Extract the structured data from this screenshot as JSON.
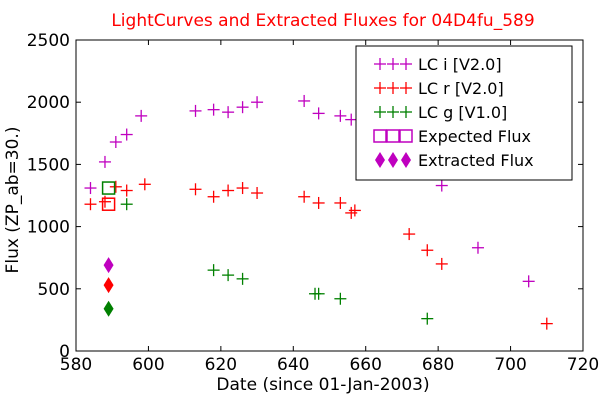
{
  "chart_data": {
    "type": "scatter",
    "title": "LightCurves and Extracted Fluxes for 04D4fu_589",
    "title_color": "#ff0000",
    "xlabel": "Date (since 01-Jan-2003)",
    "ylabel": "Flux (ZP_ab=30.)",
    "xlim": [
      580,
      720
    ],
    "ylim": [
      0,
      2500
    ],
    "xticks": [
      580,
      600,
      620,
      640,
      660,
      680,
      700,
      720
    ],
    "yticks": [
      0,
      500,
      1000,
      1500,
      2000,
      2500
    ],
    "grid": false,
    "legend_position": "top-right",
    "series": [
      {
        "name": "LC i [V2.0]",
        "color": "#bf00bf",
        "marker": "plus",
        "points": [
          [
            584,
            1310
          ],
          [
            588,
            1520
          ],
          [
            591,
            1680
          ],
          [
            594,
            1740
          ],
          [
            598,
            1890
          ],
          [
            613,
            1930
          ],
          [
            618,
            1940
          ],
          [
            622,
            1920
          ],
          [
            626,
            1960
          ],
          [
            630,
            2000
          ],
          [
            643,
            2010
          ],
          [
            647,
            1910
          ],
          [
            653,
            1890
          ],
          [
            656,
            1860
          ],
          [
            681,
            1330
          ],
          [
            691,
            830
          ],
          [
            705,
            560
          ]
        ]
      },
      {
        "name": "LC r [V2.0]",
        "color": "#ff0000",
        "marker": "plus",
        "points": [
          [
            584,
            1180
          ],
          [
            588,
            1200
          ],
          [
            591,
            1320
          ],
          [
            594,
            1290
          ],
          [
            599,
            1340
          ],
          [
            613,
            1300
          ],
          [
            618,
            1240
          ],
          [
            622,
            1290
          ],
          [
            626,
            1310
          ],
          [
            630,
            1270
          ],
          [
            643,
            1240
          ],
          [
            647,
            1190
          ],
          [
            653,
            1190
          ],
          [
            656,
            1110
          ],
          [
            657,
            1130
          ],
          [
            672,
            940
          ],
          [
            677,
            810
          ],
          [
            681,
            700
          ],
          [
            710,
            220
          ]
        ]
      },
      {
        "name": "LC g [V1.0]",
        "color": "#008000",
        "marker": "plus",
        "points": [
          [
            594,
            1180
          ],
          [
            618,
            650
          ],
          [
            622,
            610
          ],
          [
            626,
            580
          ],
          [
            646,
            460
          ],
          [
            647,
            460
          ],
          [
            653,
            420
          ],
          [
            677,
            260
          ]
        ]
      },
      {
        "name": "Expected Flux",
        "color": "#bf00bf",
        "marker": "square",
        "points": [],
        "extra_points": [
          {
            "x": 589,
            "y": 1310,
            "color": "#008000"
          },
          {
            "x": 589,
            "y": 1180,
            "color": "#ff0000"
          }
        ]
      },
      {
        "name": "Extracted Flux",
        "color": "#bf00bf",
        "marker": "diamond",
        "points": [],
        "extra_points": [
          {
            "x": 589,
            "y": 690,
            "color": "#bf00bf"
          },
          {
            "x": 589,
            "y": 530,
            "color": "#ff0000"
          },
          {
            "x": 589,
            "y": 340,
            "color": "#008000"
          }
        ]
      }
    ]
  }
}
